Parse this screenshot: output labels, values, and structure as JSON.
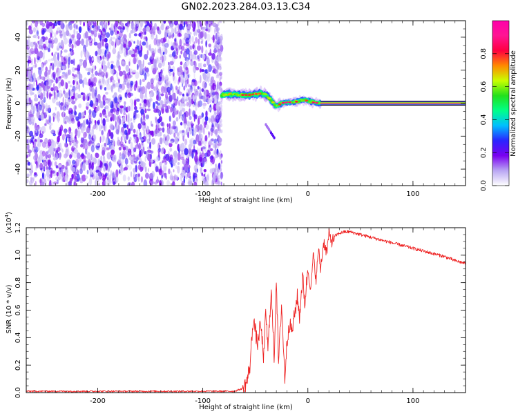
{
  "figure": {
    "title": "GN02.2023.284.03.13.C34"
  },
  "chart_data": [
    {
      "type": "heatmap",
      "title": "GN02.2023.284.03.13.C34",
      "xlabel": "Height of straight line (km)",
      "ylabel": "Frequency (Hz)",
      "xlim": [
        -268,
        150
      ],
      "ylim": [
        -50,
        50
      ],
      "xticks": [
        -200,
        -100,
        0,
        100
      ],
      "yticks": [
        -40,
        -20,
        0,
        20,
        40
      ],
      "xtick_labels": [
        "-200",
        "-100",
        "0",
        "100"
      ],
      "ytick_labels": [
        "-40",
        "-20",
        "0",
        "20",
        "40"
      ],
      "noise_region_x": [
        -268,
        -82
      ],
      "signal_track": {
        "x": [
          -82,
          -75,
          -65,
          -55,
          -45,
          -40,
          -35,
          -30,
          -25,
          -20,
          -15,
          -10,
          -5,
          0,
          5,
          10,
          150
        ],
        "y": [
          5,
          5.5,
          5,
          5,
          6,
          5,
          2,
          -2,
          0,
          0.5,
          0.5,
          1,
          2,
          1.5,
          0.5,
          0,
          0
        ],
        "intensity": [
          0.4,
          0.6,
          0.7,
          0.7,
          0.65,
          0.6,
          0.55,
          0.6,
          0.75,
          0.8,
          0.75,
          0.7,
          0.65,
          0.7,
          0.75,
          0.8,
          0.9
        ]
      },
      "secondary_streak": {
        "x": [
          -40,
          -32
        ],
        "y": [
          -13,
          -21
        ]
      },
      "colorbar": {
        "label": "Normalized spectral amplitude",
        "range": [
          0,
          1
        ],
        "ticks": [
          "0.0",
          "0.2",
          "0.4",
          "0.6",
          "0.8"
        ],
        "colormap": [
          "#ffffff",
          "#b9a6f3",
          "#7a00f0",
          "#2a24ff",
          "#00bfff",
          "#00ff88",
          "#22e01c",
          "#c9ff00",
          "#ff8a00",
          "#ff0040",
          "#ff1493",
          "#ff00aa"
        ]
      },
      "grid": false,
      "legend": "none"
    },
    {
      "type": "line",
      "xlabel": "Height of straight line (km)",
      "ylabel": "SNR (10 * v/v)",
      "y_exponent_label": "(x10",
      "y_exponent_power": "4",
      "y_exponent_close": ")",
      "xlim": [
        -268,
        150
      ],
      "ylim": [
        0,
        1.2
      ],
      "xticks": [
        -200,
        -100,
        0,
        100
      ],
      "yticks": [
        0.0,
        0.2,
        0.4,
        0.6,
        0.8,
        1.0,
        1.2
      ],
      "xtick_labels": [
        "-200",
        "-100",
        "0",
        "100"
      ],
      "ytick_labels": [
        "0.0",
        "0.2",
        "0.4",
        "0.6",
        "0.8",
        "1.0",
        "1.2"
      ],
      "color": "#ee2222",
      "series": [
        {
          "x": [
            -268,
            -200,
            -150,
            -100,
            -70,
            -62,
            -58,
            -55,
            -52,
            -48,
            -45,
            -42,
            -40,
            -38,
            -35,
            -32,
            -30,
            -28,
            -25,
            -22,
            -20,
            -18,
            -15,
            -12,
            -10,
            -8,
            -5,
            -3,
            0,
            3,
            5,
            8,
            10,
            12,
            15,
            18,
            20,
            23,
            26,
            30,
            35,
            40,
            45,
            50,
            60,
            70,
            80,
            90,
            100,
            110,
            120,
            130,
            140,
            150
          ],
          "values": [
            0.01,
            0.01,
            0.01,
            0.01,
            0.01,
            0.03,
            0.08,
            0.2,
            0.55,
            0.35,
            0.5,
            0.25,
            0.6,
            0.3,
            0.75,
            0.25,
            0.85,
            0.2,
            0.65,
            0.1,
            0.35,
            0.5,
            0.45,
            0.6,
            0.7,
            0.55,
            0.85,
            0.65,
            0.9,
            0.75,
            1.0,
            0.82,
            1.05,
            0.9,
            1.1,
            1.02,
            1.15,
            1.1,
            1.14,
            1.16,
            1.17,
            1.17,
            1.16,
            1.15,
            1.13,
            1.11,
            1.09,
            1.07,
            1.05,
            1.03,
            1.01,
            0.99,
            0.96,
            0.94
          ]
        }
      ],
      "grid": false,
      "legend": "none"
    }
  ]
}
